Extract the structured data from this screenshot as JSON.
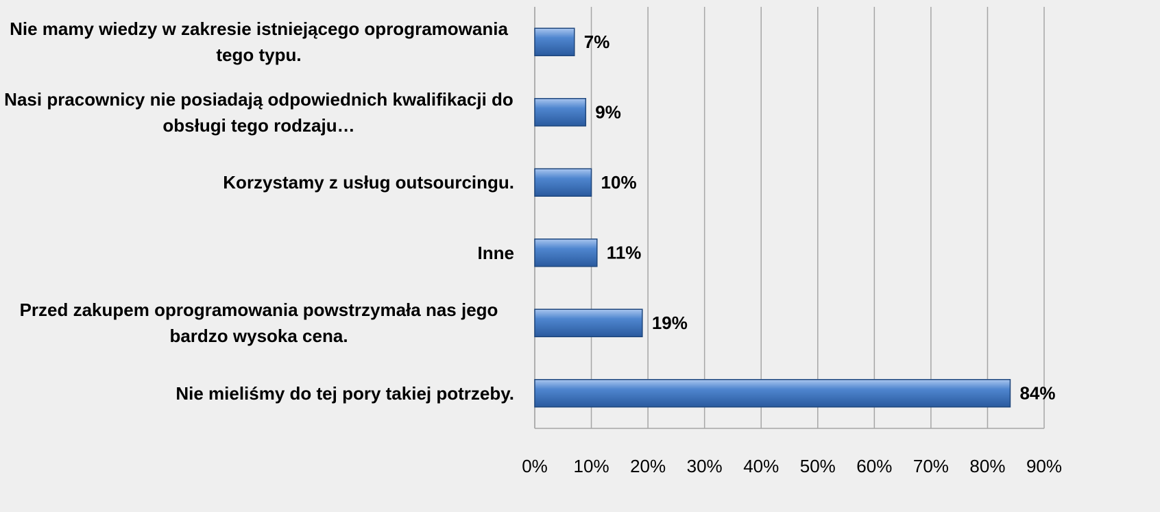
{
  "chart_data": {
    "type": "bar",
    "orientation": "horizontal",
    "categories": [
      "Nie mamy wiedzy w zakresie istniejącego oprogramowania tego typu.",
      "Nasi pracownicy nie posiadają odpowiednich kwalifikacji do obsługi tego rodzaju…",
      "Korzystamy z usług outsourcingu.",
      "Inne",
      "Przed zakupem oprogramowania powstrzymała nas jego bardzo wysoka cena.",
      "Nie mieliśmy do tej pory takiej potrzeby."
    ],
    "values": [
      7,
      9,
      10,
      11,
      19,
      84
    ],
    "value_labels": [
      "7%",
      "9%",
      "10%",
      "11%",
      "19%",
      "84%"
    ],
    "color": "#4a7ebb",
    "xlim": [
      0,
      90
    ],
    "xticks": [
      {
        "value": 0,
        "label": "0%"
      },
      {
        "value": 10,
        "label": "10%"
      },
      {
        "value": 20,
        "label": "20%"
      },
      {
        "value": 30,
        "label": "30%"
      },
      {
        "value": 40,
        "label": "40%"
      },
      {
        "value": 50,
        "label": "50%"
      },
      {
        "value": 60,
        "label": "60%"
      },
      {
        "value": 70,
        "label": "70%"
      },
      {
        "value": 80,
        "label": "80%"
      },
      {
        "value": 90,
        "label": "90%"
      }
    ],
    "grid": true
  }
}
